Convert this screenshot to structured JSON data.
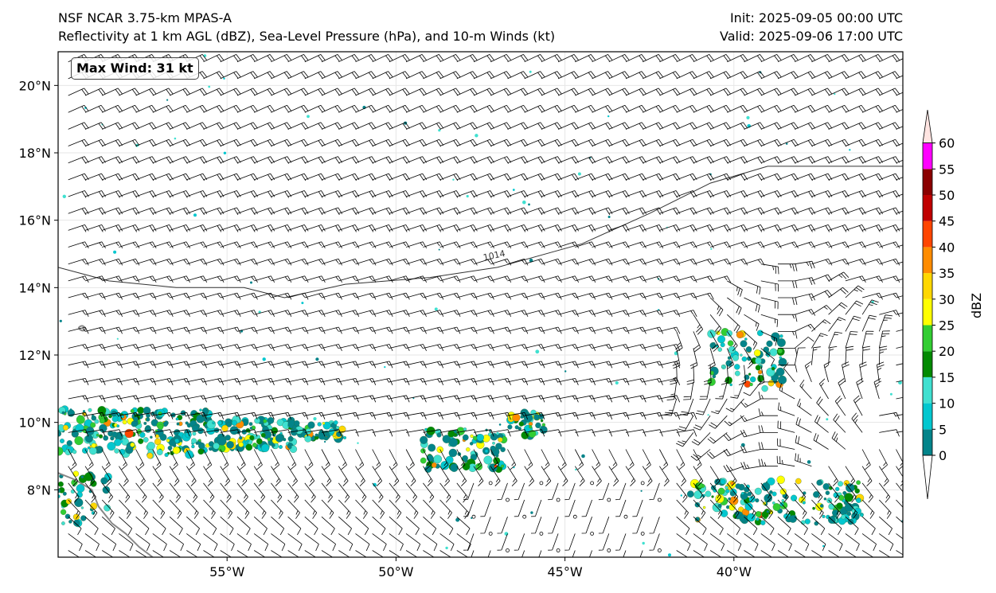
{
  "header": {
    "title_left_1": "NSF NCAR 3.75-km MPAS-A",
    "title_left_2": "Reflectivity at 1 km AGL (dBZ), Sea-Level Pressure (hPa), and 10-m Winds (kt)",
    "title_right_1": "Init: 2025-09-05 00:00 UTC",
    "title_right_2": "Valid: 2025-09-06 17:00 UTC"
  },
  "annotation": {
    "max_wind": "Max Wind: 31 kt"
  },
  "map": {
    "lon_range": [
      -60,
      -35
    ],
    "lat_range": [
      6,
      21
    ],
    "lon_ticks": [
      {
        "value": -55,
        "label": "55°W"
      },
      {
        "value": -50,
        "label": "50°W"
      },
      {
        "value": -45,
        "label": "45°W"
      },
      {
        "value": -40,
        "label": "40°W"
      }
    ],
    "lat_ticks": [
      {
        "value": 8,
        "label": "8°N"
      },
      {
        "value": 10,
        "label": "10°N"
      },
      {
        "value": 12,
        "label": "12°N"
      },
      {
        "value": 14,
        "label": "14°N"
      },
      {
        "value": 16,
        "label": "16°N"
      },
      {
        "value": 18,
        "label": "18°N"
      },
      {
        "value": 20,
        "label": "20°N"
      }
    ],
    "isobar": {
      "label": "1014",
      "label_lon": -47.4,
      "label_lat": 14.8,
      "points": [
        [
          -60,
          14.6
        ],
        [
          -58.5,
          14.2
        ],
        [
          -56.5,
          14.0
        ],
        [
          -54.5,
          14.0
        ],
        [
          -53.3,
          13.7
        ],
        [
          -51.5,
          14.1
        ],
        [
          -49,
          14.3
        ],
        [
          -47,
          14.6
        ],
        [
          -44.5,
          15.3
        ],
        [
          -42.5,
          16.2
        ],
        [
          -40.7,
          17.1
        ],
        [
          -39,
          17.6
        ],
        [
          -37,
          17.6
        ],
        [
          -35,
          17.6
        ]
      ]
    },
    "coastline": [
      [
        -60,
        8.5
      ],
      [
        -59.5,
        8.3
      ],
      [
        -59,
        8.0
      ],
      [
        -58.8,
        7.5
      ],
      [
        -58.4,
        7.0
      ],
      [
        -58.0,
        6.7
      ],
      [
        -57.6,
        6.3
      ],
      [
        -57.2,
        6.0
      ]
    ]
  },
  "colorbar": {
    "label": "dBZ",
    "ticks": [
      "0",
      "5",
      "10",
      "15",
      "20",
      "25",
      "30",
      "35",
      "40",
      "45",
      "50",
      "55",
      "60"
    ],
    "colors": [
      "#03848a",
      "#02c7cf",
      "#40e0d0",
      "#028a02",
      "#32cd32",
      "#ffff00",
      "#ffd700",
      "#ff8c00",
      "#ff4500",
      "#c00000",
      "#8b0000",
      "#ff00ff",
      "#ffe4e1"
    ]
  }
}
